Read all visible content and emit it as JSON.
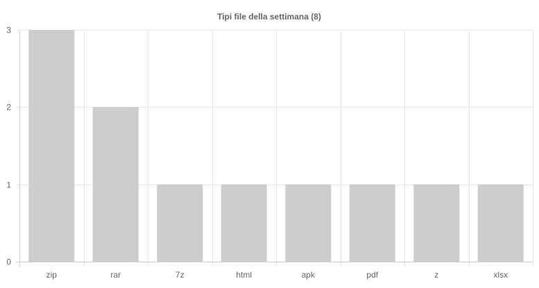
{
  "chart_data": {
    "type": "bar",
    "title": "Tipi file della settimana (8)",
    "xlabel": "",
    "ylabel": "",
    "categories": [
      "zip",
      "rar",
      "7z",
      "html",
      "apk",
      "pdf",
      "z",
      "xlsx"
    ],
    "values": [
      3,
      2,
      1,
      1,
      1,
      1,
      1,
      1
    ],
    "ylim": [
      0,
      3
    ],
    "yticks": [
      "0",
      "1",
      "2",
      "3"
    ],
    "grid": true,
    "legend": "none",
    "colors": {
      "bar": "#cdcdcf",
      "grid": "#e6e6e6",
      "axis": "#cccccc",
      "text": "#666666"
    }
  }
}
